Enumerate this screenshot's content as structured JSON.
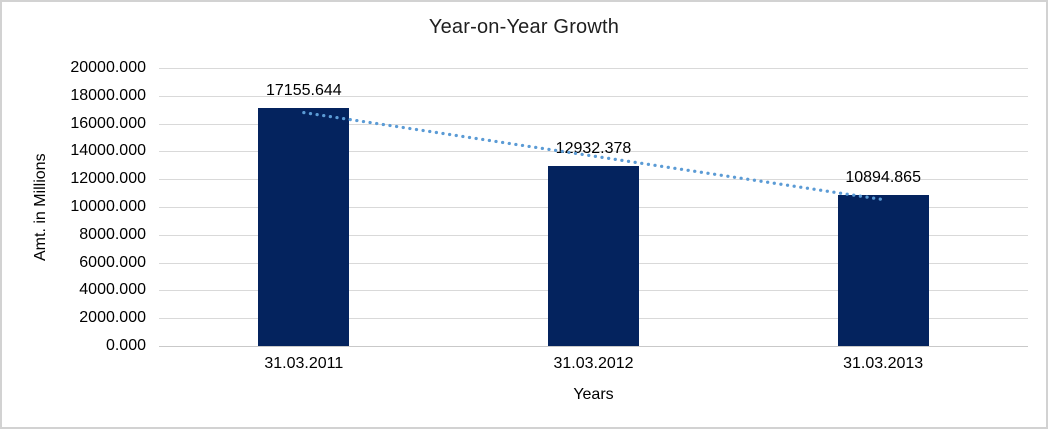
{
  "chart_data": {
    "type": "bar",
    "title": "Year-on-Year Growth",
    "xlabel": "Years",
    "ylabel": "Amt. in Millions",
    "categories": [
      "31.03.2011",
      "31.03.2012",
      "31.03.2013"
    ],
    "values": [
      17155.644,
      12932.378,
      10894.865
    ],
    "data_labels": [
      "17155.644",
      "12932.378",
      "10894.865"
    ],
    "ylim": [
      0,
      20000
    ],
    "ytick_step": 2000,
    "ytick_labels": [
      "0.000",
      "2000.000",
      "4000.000",
      "6000.000",
      "8000.000",
      "10000.000",
      "12000.000",
      "14000.000",
      "16000.000",
      "18000.000",
      "20000.000"
    ],
    "grid": true,
    "legend": false,
    "bar_color": "#04235e",
    "gridline_color": "#d9d9d9",
    "axis_line_color": "#c9c9c9",
    "label_color": "#000000",
    "title_color": "#1f1f1f",
    "frame_border_color": "#d2d2d2",
    "trendline": {
      "type": "linear",
      "style": "dotted",
      "color": "#5b9bd5"
    }
  }
}
